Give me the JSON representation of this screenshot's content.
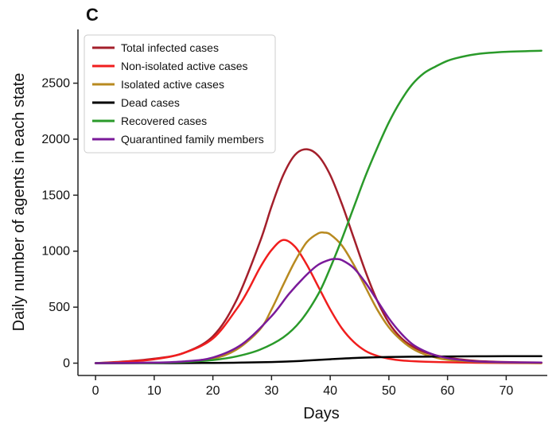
{
  "panel_label": "C",
  "chart_data": {
    "type": "line",
    "xlabel": "Days",
    "ylabel": "Daily number of agents in each state",
    "xlim": [
      -3,
      77
    ],
    "ylim": [
      -110,
      2980
    ],
    "x_ticks": [
      0,
      10,
      20,
      30,
      40,
      50,
      60,
      70
    ],
    "y_ticks": [
      0,
      500,
      1000,
      1500,
      2000,
      2500
    ],
    "grid": false,
    "legend_position": "top-left",
    "series": [
      {
        "name": "Total infected cases",
        "color": "#a31f2b",
        "x": [
          0,
          5,
          10,
          15,
          20,
          24,
          28,
          30,
          32,
          34,
          36,
          38,
          40,
          42,
          44,
          46,
          48,
          50,
          52,
          54,
          56,
          58,
          60,
          62,
          65,
          70,
          76
        ],
        "y": [
          0,
          15,
          40,
          90,
          240,
          560,
          1080,
          1400,
          1680,
          1860,
          1910,
          1850,
          1680,
          1420,
          1120,
          820,
          560,
          360,
          230,
          150,
          100,
          70,
          50,
          35,
          20,
          10,
          5
        ]
      },
      {
        "name": "Non-isolated active cases",
        "color": "#f01e1e",
        "x": [
          0,
          5,
          10,
          15,
          20,
          24,
          26,
          28,
          30,
          32,
          34,
          36,
          38,
          40,
          42,
          44,
          46,
          48,
          50,
          52,
          55,
          60,
          65,
          70,
          76
        ],
        "y": [
          0,
          12,
          35,
          90,
          220,
          480,
          650,
          850,
          1010,
          1100,
          1040,
          880,
          680,
          480,
          310,
          190,
          110,
          65,
          40,
          25,
          15,
          8,
          4,
          2,
          0
        ]
      },
      {
        "name": "Isolated active cases",
        "color": "#b88a20",
        "x": [
          0,
          10,
          15,
          20,
          24,
          28,
          30,
          32,
          34,
          36,
          38,
          39,
          40,
          42,
          44,
          46,
          48,
          50,
          52,
          54,
          56,
          58,
          60,
          65,
          70,
          76
        ],
        "y": [
          0,
          3,
          10,
          40,
          120,
          300,
          480,
          700,
          910,
          1080,
          1160,
          1165,
          1150,
          1050,
          880,
          680,
          480,
          320,
          210,
          130,
          80,
          50,
          30,
          12,
          5,
          0
        ]
      },
      {
        "name": "Dead cases",
        "color": "#000000",
        "x": [
          0,
          10,
          20,
          25,
          30,
          35,
          40,
          45,
          50,
          55,
          60,
          65,
          70,
          76
        ],
        "y": [
          0,
          0,
          2,
          5,
          10,
          20,
          35,
          48,
          55,
          58,
          60,
          61,
          62,
          62
        ]
      },
      {
        "name": "Recovered cases",
        "color": "#2a9a2a",
        "x": [
          0,
          10,
          15,
          20,
          24,
          28,
          32,
          35,
          38,
          40,
          42,
          44,
          46,
          48,
          50,
          52,
          54,
          56,
          58,
          60,
          62,
          65,
          70,
          76
        ],
        "y": [
          0,
          3,
          10,
          28,
          60,
          120,
          230,
          380,
          620,
          850,
          1110,
          1390,
          1670,
          1920,
          2150,
          2340,
          2490,
          2590,
          2650,
          2700,
          2730,
          2760,
          2780,
          2790
        ]
      },
      {
        "name": "Quarantined family members",
        "color": "#7a1a9a",
        "x": [
          0,
          10,
          15,
          20,
          25,
          30,
          33,
          36,
          38,
          40,
          41,
          42,
          44,
          46,
          48,
          50,
          52,
          54,
          56,
          58,
          60,
          62,
          65,
          70,
          76
        ],
        "y": [
          0,
          5,
          15,
          50,
          170,
          420,
          620,
          790,
          880,
          925,
          930,
          920,
          850,
          720,
          560,
          400,
          270,
          170,
          110,
          70,
          45,
          30,
          15,
          8,
          5
        ]
      }
    ]
  }
}
